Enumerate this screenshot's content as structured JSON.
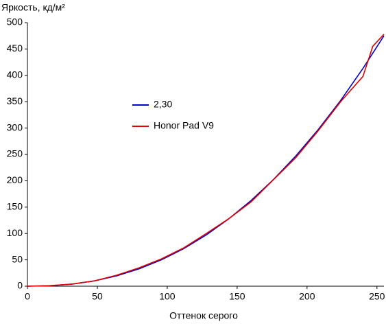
{
  "chart_data": {
    "type": "line",
    "ylabel": "Яркость, кд/м²",
    "xlabel": "Оттенок серого",
    "xlim": [
      0,
      255
    ],
    "xticks": [
      0,
      50,
      100,
      150,
      200,
      250
    ],
    "ylim": [
      0,
      500
    ],
    "yticks": [
      0,
      50,
      100,
      150,
      200,
      250,
      300,
      350,
      400,
      450,
      500
    ],
    "series": [
      {
        "name": "2,30",
        "color": "#0000cc",
        "x": [
          0,
          16,
          32,
          48,
          64,
          80,
          96,
          112,
          128,
          144,
          160,
          176,
          192,
          208,
          224,
          240,
          255
        ],
        "values": [
          0,
          0.8,
          4,
          10.2,
          19.8,
          33,
          50.2,
          71.5,
          97.4,
          127.7,
          162.6,
          202.4,
          247.2,
          297.2,
          352.2,
          413.2,
          475
        ]
      },
      {
        "name": "Honor Pad V9",
        "color": "#e00000",
        "x": [
          0,
          16,
          32,
          48,
          64,
          80,
          96,
          112,
          128,
          144,
          160,
          176,
          192,
          208,
          224,
          240,
          247,
          255
        ],
        "values": [
          0,
          1,
          4,
          10,
          21,
          35,
          52,
          73,
          100,
          128,
          160,
          202,
          244,
          295,
          350,
          398,
          455,
          478
        ]
      }
    ]
  }
}
